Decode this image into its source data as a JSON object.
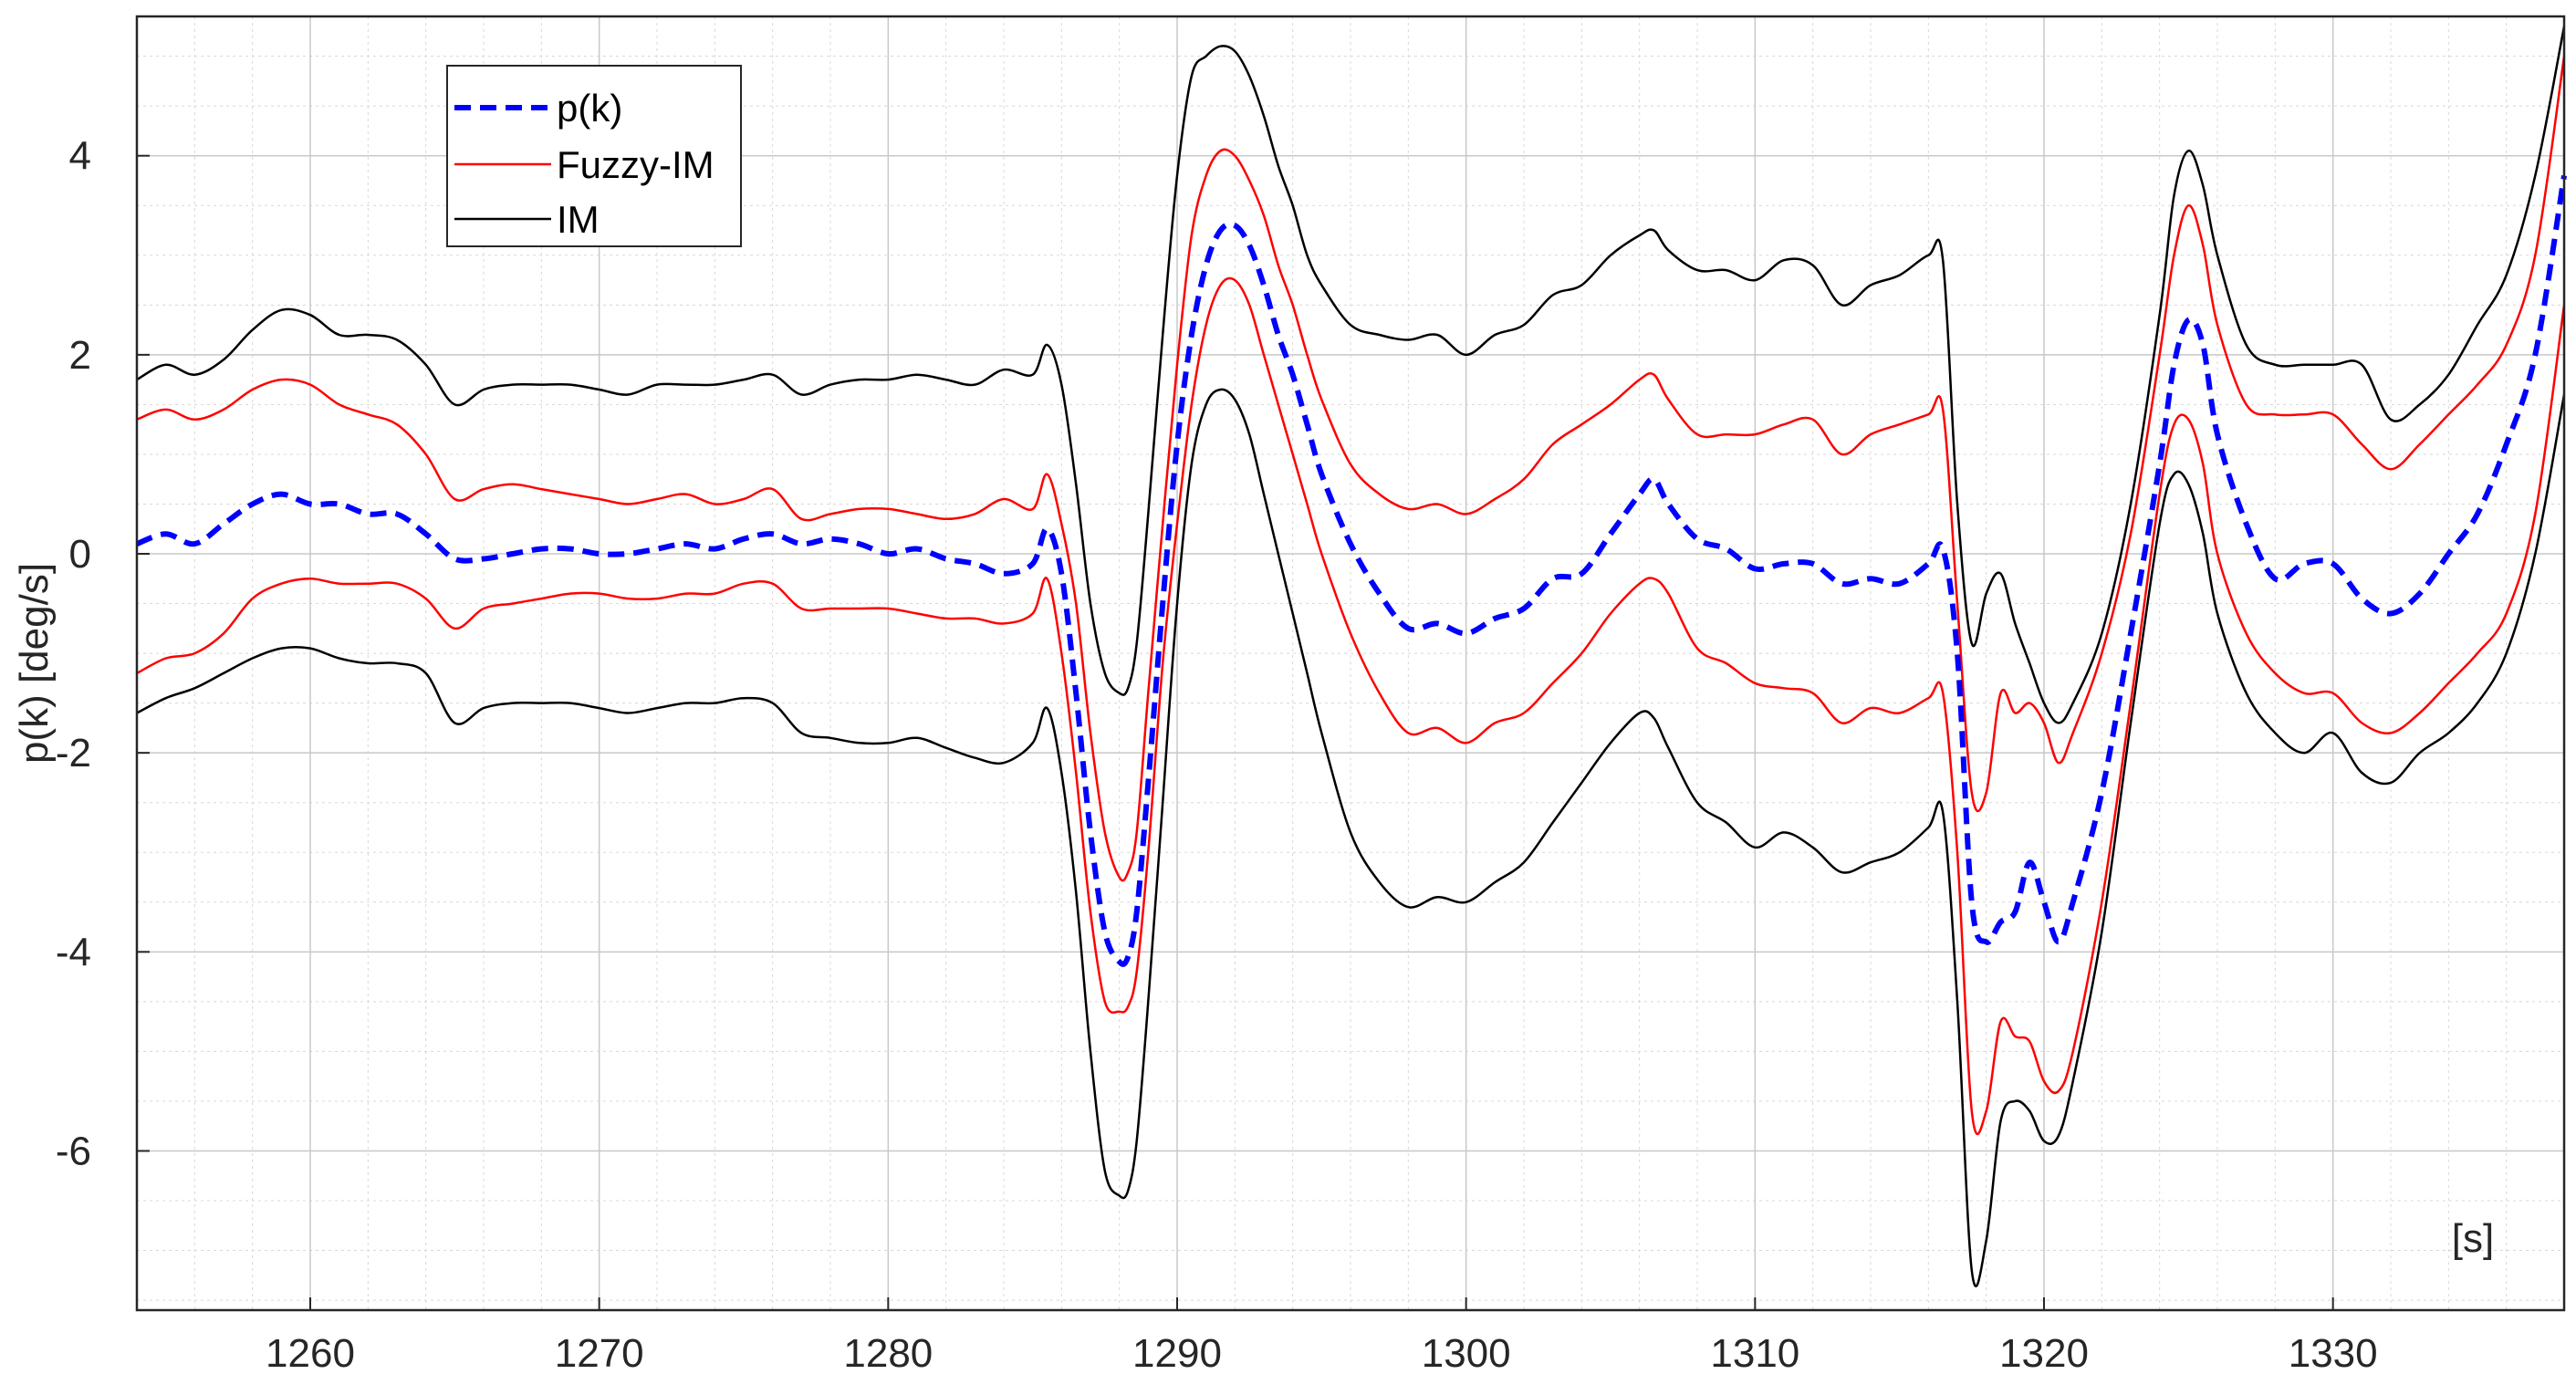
{
  "chart_data": {
    "type": "line",
    "xlabel": "[s]",
    "ylabel": "p(k) [deg/s]",
    "xlim": [
      1254,
      1338
    ],
    "ylim": [
      -7.6,
      5.4
    ],
    "xticks": [
      1260,
      1270,
      1280,
      1290,
      1300,
      1310,
      1320,
      1330
    ],
    "yticks": [
      -6,
      -4,
      -2,
      0,
      2,
      4
    ],
    "grid": true,
    "minor_grid": true,
    "legend_position": "top-left",
    "legend": [
      "p(k)",
      "Fuzzy-IM",
      "IM"
    ],
    "x": [
      1254,
      1255,
      1256,
      1257,
      1258,
      1259,
      1260,
      1261,
      1262,
      1263,
      1264,
      1265,
      1266,
      1267,
      1268,
      1269,
      1270,
      1271,
      1272,
      1273,
      1274,
      1275,
      1276,
      1277,
      1278,
      1279,
      1280,
      1281,
      1282,
      1283,
      1284,
      1285,
      1285.5,
      1286,
      1286.5,
      1287,
      1287.5,
      1288,
      1288.3,
      1288.6,
      1289,
      1289.5,
      1290,
      1290.5,
      1291,
      1291.5,
      1292,
      1292.5,
      1293,
      1293.5,
      1294,
      1294.5,
      1295,
      1296,
      1297,
      1298,
      1299,
      1300,
      1301,
      1302,
      1303,
      1304,
      1305,
      1306,
      1306.5,
      1307,
      1308,
      1309,
      1310,
      1311,
      1312,
      1313,
      1314,
      1315,
      1316,
      1316.5,
      1317,
      1317.5,
      1318,
      1318.5,
      1319,
      1319.5,
      1320,
      1320.5,
      1321,
      1322,
      1323,
      1324,
      1324.5,
      1325,
      1325.5,
      1326,
      1327,
      1328,
      1329,
      1330,
      1331,
      1332,
      1333,
      1334,
      1335,
      1336,
      1337,
      1338
    ],
    "series": [
      {
        "name": "p(k)",
        "color": "#0000ff",
        "style": "dashed",
        "values": [
          0.1,
          0.2,
          0.1,
          0.3,
          0.5,
          0.6,
          0.5,
          0.5,
          0.4,
          0.4,
          0.2,
          -0.05,
          -0.05,
          0.0,
          0.05,
          0.05,
          0.0,
          0.0,
          0.05,
          0.1,
          0.05,
          0.15,
          0.2,
          0.1,
          0.15,
          0.1,
          0.0,
          0.05,
          -0.05,
          -0.1,
          -0.2,
          -0.1,
          0.25,
          -0.2,
          -1.4,
          -2.8,
          -3.8,
          -4.1,
          -4.05,
          -3.6,
          -2.3,
          -0.5,
          1.1,
          2.2,
          2.9,
          3.25,
          3.3,
          3.1,
          2.7,
          2.2,
          1.8,
          1.3,
          0.8,
          0.1,
          -0.4,
          -0.75,
          -0.7,
          -0.8,
          -0.65,
          -0.55,
          -0.25,
          -0.2,
          0.2,
          0.6,
          0.75,
          0.5,
          0.15,
          0.05,
          -0.15,
          -0.1,
          -0.1,
          -0.3,
          -0.25,
          -0.3,
          -0.1,
          0.05,
          -1.0,
          -3.5,
          -3.9,
          -3.7,
          -3.6,
          -3.1,
          -3.5,
          -3.9,
          -3.5,
          -2.4,
          -0.8,
          0.9,
          1.9,
          2.35,
          2.1,
          1.2,
          0.3,
          -0.25,
          -0.1,
          -0.1,
          -0.45,
          -0.6,
          -0.4,
          0.0,
          0.4,
          1.1,
          2.0,
          3.8
        ]
      },
      {
        "name": "Fuzzy-IM",
        "color": "#ff0000",
        "style": "solid",
        "values": [
          1.35,
          1.45,
          1.35,
          1.45,
          1.65,
          1.75,
          1.7,
          1.5,
          1.4,
          1.3,
          1.0,
          0.55,
          0.65,
          0.7,
          0.65,
          0.6,
          0.55,
          0.5,
          0.55,
          0.6,
          0.5,
          0.55,
          0.65,
          0.35,
          0.4,
          0.45,
          0.45,
          0.4,
          0.35,
          0.4,
          0.55,
          0.45,
          0.8,
          0.3,
          -0.5,
          -1.8,
          -2.8,
          -3.25,
          -3.2,
          -2.8,
          -1.4,
          0.3,
          1.9,
          3.2,
          3.8,
          4.05,
          4.0,
          3.75,
          3.4,
          2.9,
          2.5,
          2.0,
          1.55,
          0.9,
          0.6,
          0.45,
          0.5,
          0.4,
          0.55,
          0.75,
          1.1,
          1.3,
          1.5,
          1.75,
          1.8,
          1.55,
          1.2,
          1.2,
          1.2,
          1.3,
          1.35,
          1.0,
          1.2,
          1.3,
          1.4,
          1.45,
          -0.5,
          -2.4,
          -2.4,
          -1.4,
          -1.6,
          -1.5,
          -1.7,
          -2.1,
          -1.8,
          -1.0,
          0.2,
          2.0,
          3.0,
          3.5,
          3.1,
          2.3,
          1.5,
          1.4,
          1.4,
          1.4,
          1.1,
          0.85,
          1.1,
          1.4,
          1.7,
          2.1,
          3.0,
          5.0
        ]
      },
      {
        "name": "",
        "color": "#ff0000",
        "style": "solid",
        "values": [
          -1.2,
          -1.05,
          -1.0,
          -0.8,
          -0.45,
          -0.3,
          -0.25,
          -0.3,
          -0.3,
          -0.3,
          -0.45,
          -0.75,
          -0.55,
          -0.5,
          -0.45,
          -0.4,
          -0.4,
          -0.45,
          -0.45,
          -0.4,
          -0.4,
          -0.3,
          -0.3,
          -0.55,
          -0.55,
          -0.55,
          -0.55,
          -0.6,
          -0.65,
          -0.65,
          -0.7,
          -0.6,
          -0.25,
          -1.0,
          -2.2,
          -3.6,
          -4.5,
          -4.6,
          -4.55,
          -4.2,
          -3.0,
          -1.1,
          0.3,
          1.5,
          2.3,
          2.7,
          2.75,
          2.5,
          2.0,
          1.5,
          1.0,
          0.5,
          0.0,
          -0.8,
          -1.4,
          -1.8,
          -1.75,
          -1.9,
          -1.7,
          -1.6,
          -1.3,
          -1.0,
          -0.6,
          -0.3,
          -0.25,
          -0.4,
          -0.95,
          -1.1,
          -1.3,
          -1.35,
          -1.4,
          -1.7,
          -1.55,
          -1.6,
          -1.45,
          -1.4,
          -3.0,
          -5.6,
          -5.6,
          -4.7,
          -4.85,
          -4.9,
          -5.3,
          -5.4,
          -5.0,
          -3.5,
          -1.5,
          0.6,
          1.3,
          1.35,
          0.9,
          0.0,
          -0.8,
          -1.2,
          -1.4,
          -1.4,
          -1.7,
          -1.8,
          -1.6,
          -1.3,
          -1.0,
          -0.6,
          0.4,
          2.5
        ]
      },
      {
        "name": "IM",
        "color": "#000000",
        "style": "solid",
        "values": [
          1.75,
          1.9,
          1.8,
          1.95,
          2.25,
          2.45,
          2.4,
          2.2,
          2.2,
          2.15,
          1.9,
          1.5,
          1.65,
          1.7,
          1.7,
          1.7,
          1.65,
          1.6,
          1.7,
          1.7,
          1.7,
          1.75,
          1.8,
          1.6,
          1.7,
          1.75,
          1.75,
          1.8,
          1.75,
          1.7,
          1.85,
          1.8,
          2.1,
          1.7,
          0.7,
          -0.5,
          -1.2,
          -1.4,
          -1.35,
          -0.9,
          0.4,
          2.2,
          3.8,
          4.8,
          5.0,
          5.1,
          5.05,
          4.8,
          4.4,
          3.9,
          3.5,
          3.0,
          2.7,
          2.3,
          2.2,
          2.15,
          2.2,
          2.0,
          2.2,
          2.3,
          2.6,
          2.7,
          3.0,
          3.2,
          3.25,
          3.05,
          2.85,
          2.85,
          2.75,
          2.95,
          2.9,
          2.5,
          2.7,
          2.8,
          3.0,
          2.95,
          0.5,
          -0.9,
          -0.4,
          -0.2,
          -0.7,
          -1.1,
          -1.5,
          -1.7,
          -1.5,
          -0.8,
          0.5,
          2.4,
          3.6,
          4.05,
          3.7,
          3.0,
          2.1,
          1.9,
          1.9,
          1.9,
          1.9,
          1.35,
          1.5,
          1.8,
          2.3,
          2.8,
          3.8,
          5.3
        ]
      },
      {
        "name": "",
        "color": "#000000",
        "style": "solid",
        "values": [
          -1.6,
          -1.45,
          -1.35,
          -1.2,
          -1.05,
          -0.95,
          -0.95,
          -1.05,
          -1.1,
          -1.1,
          -1.2,
          -1.7,
          -1.55,
          -1.5,
          -1.5,
          -1.5,
          -1.55,
          -1.6,
          -1.55,
          -1.5,
          -1.5,
          -1.45,
          -1.5,
          -1.8,
          -1.85,
          -1.9,
          -1.9,
          -1.85,
          -1.95,
          -2.05,
          -2.1,
          -1.9,
          -1.55,
          -2.2,
          -3.4,
          -5.0,
          -6.2,
          -6.45,
          -6.4,
          -5.9,
          -4.5,
          -2.5,
          -0.5,
          0.9,
          1.5,
          1.65,
          1.55,
          1.2,
          0.6,
          0.0,
          -0.6,
          -1.2,
          -1.8,
          -2.8,
          -3.3,
          -3.55,
          -3.45,
          -3.5,
          -3.3,
          -3.1,
          -2.7,
          -2.3,
          -1.9,
          -1.6,
          -1.65,
          -1.95,
          -2.5,
          -2.7,
          -2.95,
          -2.8,
          -2.95,
          -3.2,
          -3.1,
          -3.0,
          -2.75,
          -2.6,
          -4.5,
          -7.2,
          -6.9,
          -5.7,
          -5.5,
          -5.6,
          -5.9,
          -5.85,
          -5.3,
          -3.8,
          -1.7,
          0.3,
          0.8,
          0.7,
          0.2,
          -0.6,
          -1.4,
          -1.8,
          -2.0,
          -1.8,
          -2.2,
          -2.3,
          -2.0,
          -1.8,
          -1.5,
          -1.0,
          0.0,
          1.6
        ]
      }
    ]
  }
}
